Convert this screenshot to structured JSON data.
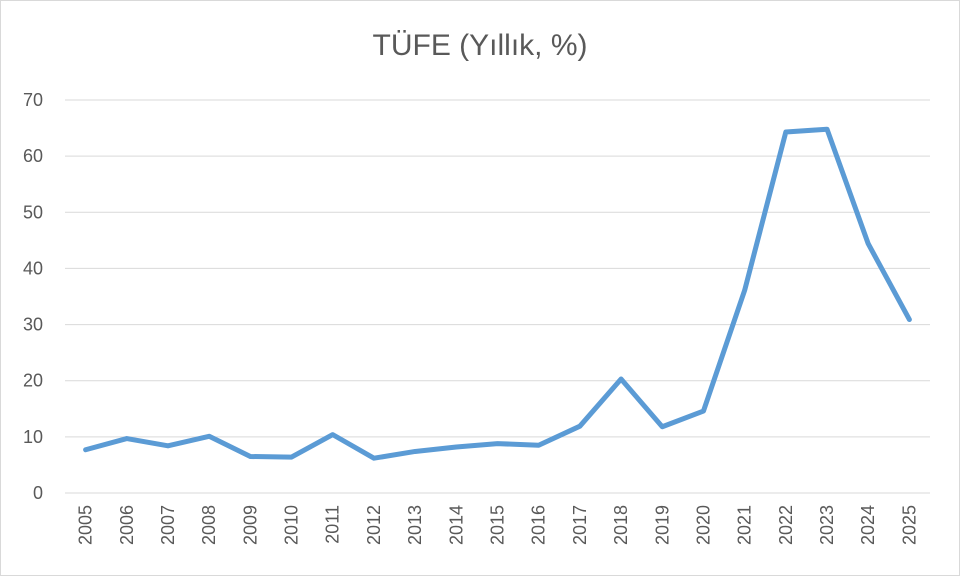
{
  "chart_data": {
    "type": "line",
    "title": "TÜFE (Yıllık, %)",
    "xlabel": "",
    "ylabel": "",
    "ylim": [
      0,
      70
    ],
    "yticks": [
      0,
      10,
      20,
      30,
      40,
      50,
      60,
      70
    ],
    "grid": true,
    "legend": "none",
    "categories": [
      "2005",
      "2006",
      "2007",
      "2008",
      "2009",
      "2010",
      "2011",
      "2012",
      "2013",
      "2014",
      "2015",
      "2016",
      "2017",
      "2018",
      "2019",
      "2020",
      "2021",
      "2022",
      "2023",
      "2024",
      "2025"
    ],
    "series": [
      {
        "color": "#5b9bd5",
        "values": [
          7.7,
          9.7,
          8.4,
          10.1,
          6.5,
          6.4,
          10.4,
          6.2,
          7.4,
          8.2,
          8.8,
          8.5,
          11.9,
          20.3,
          11.8,
          14.6,
          36.1,
          64.3,
          64.8,
          44.4,
          30.9
        ]
      }
    ]
  }
}
